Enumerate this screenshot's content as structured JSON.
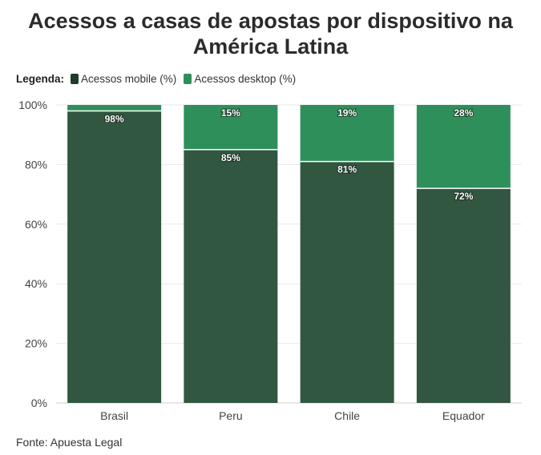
{
  "chart_data": {
    "type": "bar",
    "stacked": true,
    "title": "Acessos a casas de apostas por dispositivo na América Latina",
    "legend_title": "Legenda:",
    "categories": [
      "Brasil",
      "Peru",
      "Chile",
      "Equador"
    ],
    "series": [
      {
        "name": "Acessos mobile (%)",
        "values": [
          98,
          85,
          81,
          72
        ],
        "labels": [
          "98%",
          "85%",
          "81%",
          "72%"
        ],
        "color": "#325741"
      },
      {
        "name": "Acessos desktop (%)",
        "values": [
          2,
          15,
          19,
          28
        ],
        "labels": [
          "",
          "15%",
          "19%",
          "28%"
        ],
        "color": "#2f8f5b"
      }
    ],
    "y_ticks": [
      "0%",
      "20%",
      "40%",
      "60%",
      "80%",
      "100%"
    ],
    "ylim": [
      0,
      100
    ],
    "grid": true,
    "legend_position": "top-left",
    "source": "Fonte: Apuesta Legal",
    "legend_swatch_colors": [
      "#1f3d2a",
      "#2f8f5b"
    ]
  }
}
